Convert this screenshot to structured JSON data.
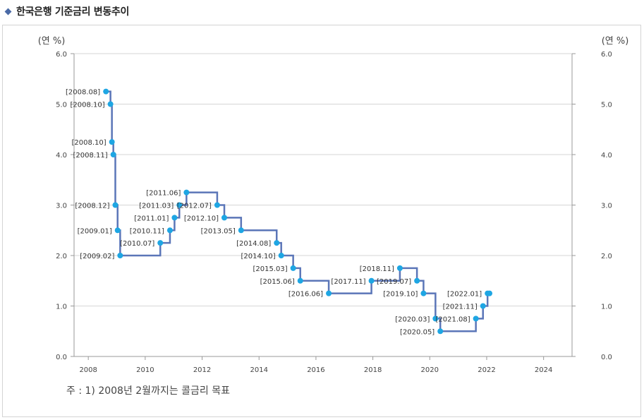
{
  "header": {
    "title": "한국은행 기준금리 변동추이"
  },
  "chart_data": {
    "type": "line",
    "line_color": "#5b76b8",
    "point_color": "#1ea6e3",
    "y_unit_left": "(연 %)",
    "y_unit_right": "(연 %)",
    "ylim": [
      0.0,
      6.0
    ],
    "yticks": [
      "0.0",
      "1.0",
      "2.0",
      "3.0",
      "4.0",
      "5.0",
      "6.0"
    ],
    "xlim": [
      2007.5,
      2025.0
    ],
    "xticks": [
      "2008",
      "2010",
      "2012",
      "2014",
      "2016",
      "2018",
      "2020",
      "2022",
      "2024"
    ],
    "grid": true,
    "points": [
      {
        "x": 2008.62,
        "y": 5.25,
        "label": "[2008.08]"
      },
      {
        "x": 2008.78,
        "y": 5.0,
        "label": "[2008.10]"
      },
      {
        "x": 2008.83,
        "y": 4.25,
        "label": "[2008.10]"
      },
      {
        "x": 2008.88,
        "y": 4.0,
        "label": "[2008.11]"
      },
      {
        "x": 2008.95,
        "y": 3.0,
        "label": "[2008.12]"
      },
      {
        "x": 2009.03,
        "y": 2.5,
        "label": "[2009.01]"
      },
      {
        "x": 2009.12,
        "y": 2.0,
        "label": "[2009.02]"
      },
      {
        "x": 2010.53,
        "y": 2.25,
        "label": "[2010.07]"
      },
      {
        "x": 2010.87,
        "y": 2.5,
        "label": "[2010.11]"
      },
      {
        "x": 2011.03,
        "y": 2.75,
        "label": "[2011.01]"
      },
      {
        "x": 2011.2,
        "y": 3.0,
        "label": "[2011.03]"
      },
      {
        "x": 2011.45,
        "y": 3.25,
        "label": "[2011.06]"
      },
      {
        "x": 2012.53,
        "y": 3.0,
        "label": "[2012.07]"
      },
      {
        "x": 2012.78,
        "y": 2.75,
        "label": "[2012.10]"
      },
      {
        "x": 2013.37,
        "y": 2.5,
        "label": "[2013.05]"
      },
      {
        "x": 2014.62,
        "y": 2.25,
        "label": "[2014.08]"
      },
      {
        "x": 2014.78,
        "y": 2.0,
        "label": "[2014.10]"
      },
      {
        "x": 2015.2,
        "y": 1.75,
        "label": "[2015.03]"
      },
      {
        "x": 2015.45,
        "y": 1.5,
        "label": "[2015.06]"
      },
      {
        "x": 2016.45,
        "y": 1.25,
        "label": "[2016.06]"
      },
      {
        "x": 2017.95,
        "y": 1.5,
        "label": "[2017.11]"
      },
      {
        "x": 2018.95,
        "y": 1.75,
        "label": "[2018.11]"
      },
      {
        "x": 2019.55,
        "y": 1.5,
        "label": "[2019.07]"
      },
      {
        "x": 2019.78,
        "y": 1.25,
        "label": "[2019.10]"
      },
      {
        "x": 2020.2,
        "y": 0.75,
        "label": "[2020.03]"
      },
      {
        "x": 2020.37,
        "y": 0.5,
        "label": "[2020.05]"
      },
      {
        "x": 2021.62,
        "y": 0.75,
        "label": "[2021.08]"
      },
      {
        "x": 2021.87,
        "y": 1.0,
        "label": "[2021.11]"
      },
      {
        "x": 2022.03,
        "y": 1.25,
        "label": "[2022.01]"
      }
    ],
    "final_point": {
      "x": 2022.1,
      "y": 1.25
    }
  },
  "note": "주 : 1) 2008년 2월까지는 콜금리 목표"
}
